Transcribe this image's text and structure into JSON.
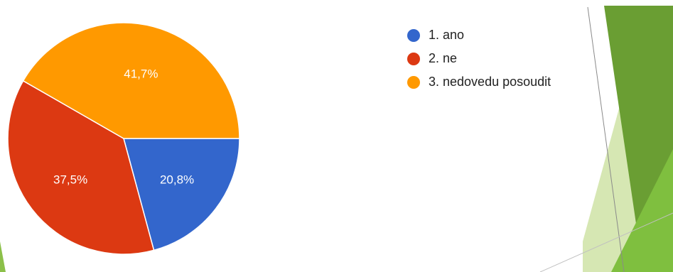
{
  "chart_data": {
    "type": "pie",
    "title": "",
    "slices": [
      {
        "label": "1. ano",
        "value": 20.8,
        "display": "20,8%",
        "color": "#3366cc"
      },
      {
        "label": "2. ne",
        "value": 37.5,
        "display": "37,5%",
        "color": "#dc3912"
      },
      {
        "label": "3. nedovedu posoudit",
        "value": 41.7,
        "display": "41,7%",
        "color": "#ff9900"
      }
    ],
    "legend_position": "top-right"
  },
  "decoration_colors": {
    "green_dark": "#5b8f2e",
    "green_mid": "#7dba3f",
    "green_light": "#c8df9c"
  }
}
